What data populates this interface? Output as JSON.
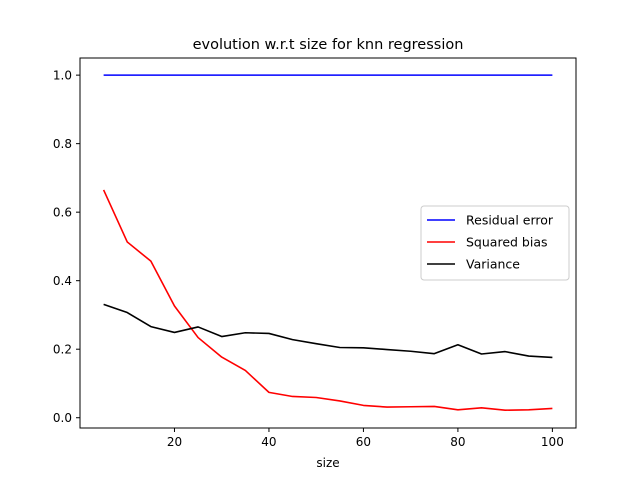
{
  "chart_data": {
    "type": "line",
    "title": "evolution w.r.t size for knn regression",
    "xlabel": "size",
    "ylabel": "",
    "xlim": [
      0,
      105
    ],
    "ylim": [
      -0.03,
      1.05
    ],
    "x_ticks": [
      20,
      40,
      60,
      80,
      100
    ],
    "y_ticks": [
      0.0,
      0.2,
      0.4,
      0.6,
      0.8,
      1.0
    ],
    "x_tick_labels": [
      "20",
      "40",
      "60",
      "80",
      "100"
    ],
    "y_tick_labels": [
      "0.0",
      "0.2",
      "0.4",
      "0.6",
      "0.8",
      "1.0"
    ],
    "grid": false,
    "legend_position": "center-right",
    "x": [
      5,
      10,
      15,
      20,
      25,
      30,
      35,
      40,
      45,
      50,
      55,
      60,
      65,
      70,
      75,
      80,
      85,
      90,
      95,
      100
    ],
    "series": [
      {
        "name": "Residual error",
        "color": "#0000ff",
        "values": [
          1.0,
          1.0,
          1.0,
          1.0,
          1.0,
          1.0,
          1.0,
          1.0,
          1.0,
          1.0,
          1.0,
          1.0,
          1.0,
          1.0,
          1.0,
          1.0,
          1.0,
          1.0,
          1.0,
          1.0
        ]
      },
      {
        "name": "Squared bias",
        "color": "#ff0000",
        "values": [
          0.665,
          0.513,
          0.457,
          0.326,
          0.234,
          0.177,
          0.138,
          0.074,
          0.062,
          0.059,
          0.049,
          0.036,
          0.031,
          0.032,
          0.033,
          0.023,
          0.029,
          0.022,
          0.023,
          0.027
        ]
      },
      {
        "name": "Variance",
        "color": "#000000",
        "values": [
          0.331,
          0.307,
          0.266,
          0.249,
          0.265,
          0.237,
          0.248,
          0.246,
          0.228,
          0.216,
          0.205,
          0.204,
          0.199,
          0.194,
          0.187,
          0.213,
          0.186,
          0.193,
          0.18,
          0.176
        ]
      }
    ]
  }
}
